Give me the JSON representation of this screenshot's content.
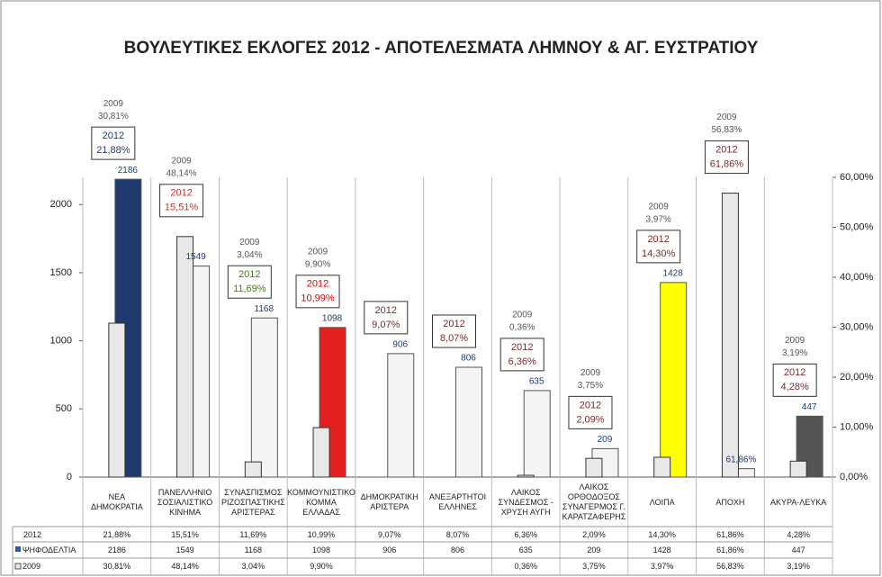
{
  "chart_data": {
    "type": "bar",
    "title": "ΒΟΥΛΕΥΤΙΚΕΣ ΕΚΛΟΓΕΣ 2012 - ΑΠΟΤΕΛΕΣΜΑΤΑ ΛΗΜΝΟΥ & ΑΓ. ΕΥΣΤΡΑΤΙΟΥ",
    "categories": [
      "ΝΕΑ ΔΗΜΟΚΡΑΤΙΑ",
      "ΠΑΝΕΛΛΗΝΙΟ ΣΟΣΙΑΛΙΣΤΙΚΟ ΚΙΝΗΜΑ",
      "ΣΥΝΑΣΠΙΣΜΟΣ ΡΙΖΟΣΠΑΣΤΙΚΗΣ ΑΡΙΣΤΕΡΑΣ",
      "ΚΟΜΜΟΥΝΙΣΤΙΚΟ ΚΟΜΜΑ ΕΛΛΑΔΑΣ",
      "ΔΗΜΟΚΡΑΤΙΚΗ ΑΡΙΣΤΕΡΑ",
      "ΑΝΕΞΑΡΤΗΤΟΙ ΕΛΛΗΝΕΣ",
      "ΛΑΙΚΟΣ ΣΥΝΔΕΣΜΟΣ - ΧΡΥΣΗ ΑΥΓΗ",
      "ΛΑΙΚΟΣ ΟΡΘΟΔΟΞΟΣ ΣΥΝΑΓΕΡΜΟΣ Γ. ΚΑΡΑΤΖΑΦΕΡΗΣ",
      "ΛΟΙΠΑ",
      "ΑΠΟΧΗ",
      "ΑΚΥΡΑ-ΛΕΥΚΑ"
    ],
    "series": [
      {
        "name": "2012",
        "axis": "y2",
        "values": [
          21.88,
          15.51,
          11.69,
          10.99,
          9.07,
          8.07,
          6.36,
          2.09,
          14.3,
          61.86,
          4.28
        ],
        "value_labels": [
          "21,88%",
          "15,51%",
          "11,69%",
          "10,99%",
          "9,07%",
          "8,07%",
          "6,36%",
          "2,09%",
          "14,30%",
          "61,86%",
          "4,28%"
        ],
        "label_colors": [
          "#1f3a8a",
          "#c0392b",
          "#4a7a1e",
          "#e00000",
          "#7a2a2a",
          "#7a2a2a",
          "#7a2a2a",
          "#7a2a2a",
          "#7a2a2a",
          "#7a2a2a",
          "#7a2a2a"
        ]
      },
      {
        "name": "ΨΗΦΟΔΕΛΤΙΑ",
        "axis": "y",
        "color": "#2e5aa8",
        "values": [
          2186,
          1549,
          1168,
          1098,
          906,
          806,
          635,
          209,
          1428,
          61.86,
          447
        ],
        "value_labels": [
          "2186",
          "1549",
          "1168",
          "1098",
          "906",
          "806",
          "635",
          "209",
          "1428",
          "61,86%",
          "447"
        ],
        "bar_colors": [
          "#1f3a6e",
          "#f4f4f4",
          "#f4f4f4",
          "#e32020",
          "#f4f4f4",
          "#f4f4f4",
          "#f4f4f4",
          "#f4f4f4",
          "#ffff00",
          "#f4f4f4",
          "#555555"
        ]
      },
      {
        "name": "2009",
        "axis": "y2",
        "color": "#e8e8e8",
        "values": [
          30.81,
          48.14,
          3.04,
          9.9,
          null,
          null,
          0.36,
          3.75,
          3.97,
          56.83,
          3.19
        ],
        "value_labels": [
          "30,81%",
          "48,14%",
          "3,04%",
          "9,90%",
          null,
          null,
          "0,36%",
          "3,75%",
          "3,97%",
          "56,83%",
          "3,19%"
        ]
      }
    ],
    "ylim": [
      0,
      2200
    ],
    "yticks": [
      0,
      500,
      1000,
      1500,
      2000
    ],
    "y2lim": [
      0,
      60
    ],
    "y2ticks": [
      {
        "value": 0,
        "label": "0,00%"
      },
      {
        "value": 10,
        "label": "10,00%"
      },
      {
        "value": 20,
        "label": "20,00%"
      },
      {
        "value": 30,
        "label": "30,00%"
      },
      {
        "value": 40,
        "label": "40,00%"
      },
      {
        "value": 50,
        "label": "50,00%"
      },
      {
        "value": 60,
        "label": "60,00%"
      }
    ]
  }
}
